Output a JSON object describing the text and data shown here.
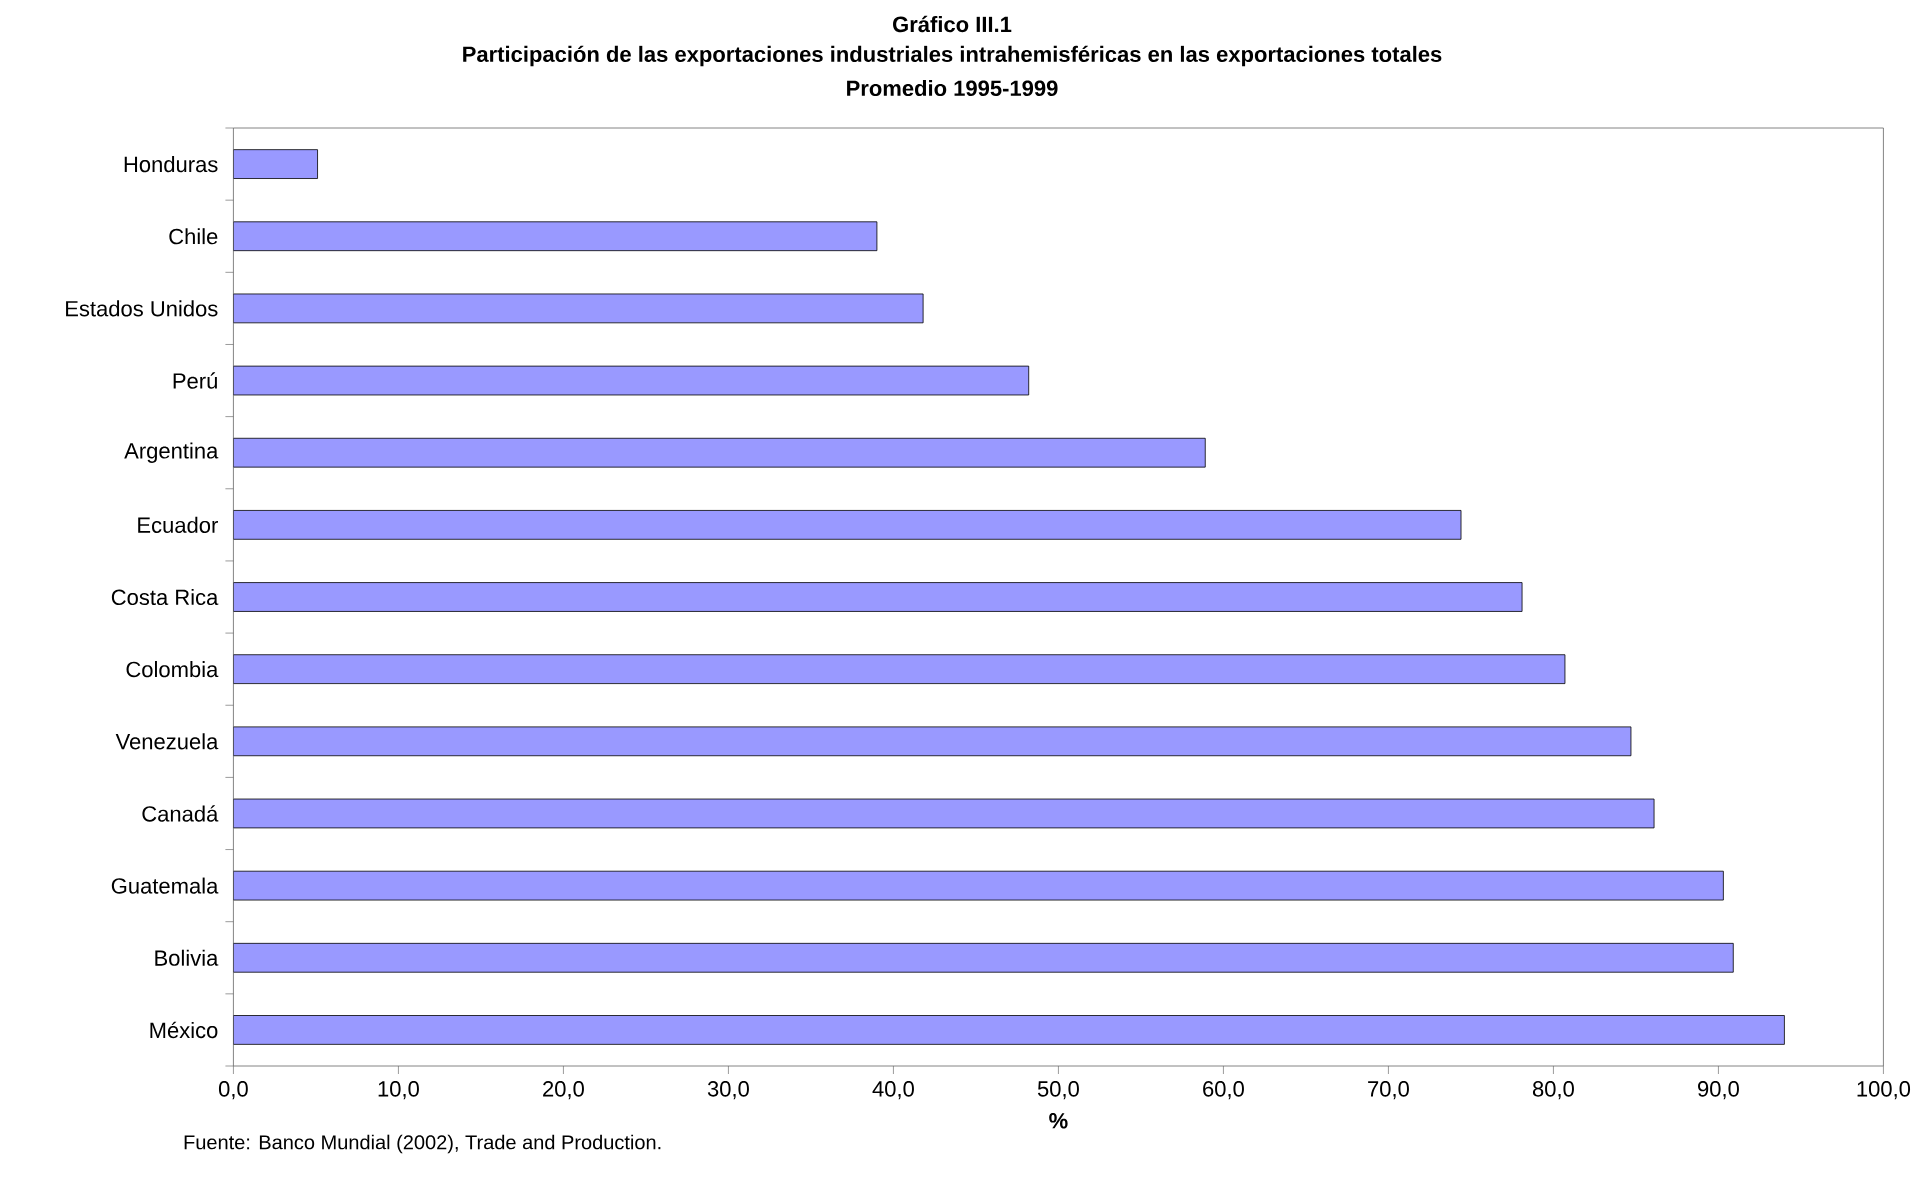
{
  "chart_data": {
    "type": "bar",
    "orientation": "horizontal",
    "title": "Gráfico III.1",
    "subtitle": "Participación de las exportaciones industriales intrahemisféricas en las exportaciones totales",
    "annotations": [
      "Promedio 1995-1999",
      "Fuente: Banco Mundial (2002), Trade and Production."
    ],
    "xlabel": "%",
    "categories": [
      "Honduras",
      "Chile",
      "Estados Unidos",
      "Perú",
      "Argentina",
      "Ecuador",
      "Costa Rica",
      "Colombia",
      "Venezuela",
      "Canadá",
      "Guatemala",
      "Bolivia",
      "México"
    ],
    "values": [
      5.1,
      39.0,
      41.8,
      48.2,
      58.9,
      74.4,
      78.1,
      80.7,
      84.7,
      86.1,
      90.3,
      90.9,
      94.0
    ],
    "color": "#9999ff",
    "xlim": [
      0,
      100
    ],
    "xticks": [
      {
        "value": 0,
        "label": "0,0"
      },
      {
        "value": 10,
        "label": "10,0"
      },
      {
        "value": 20,
        "label": "20,0"
      },
      {
        "value": 30,
        "label": "30,0"
      },
      {
        "value": 40,
        "label": "40,0"
      },
      {
        "value": 50,
        "label": "50,0"
      },
      {
        "value": 60,
        "label": "60,0"
      },
      {
        "value": 70,
        "label": "70,0"
      },
      {
        "value": 80,
        "label": "80,0"
      },
      {
        "value": 90,
        "label": "90,0"
      },
      {
        "value": 100,
        "label": "100,0"
      }
    ],
    "grid": false
  }
}
